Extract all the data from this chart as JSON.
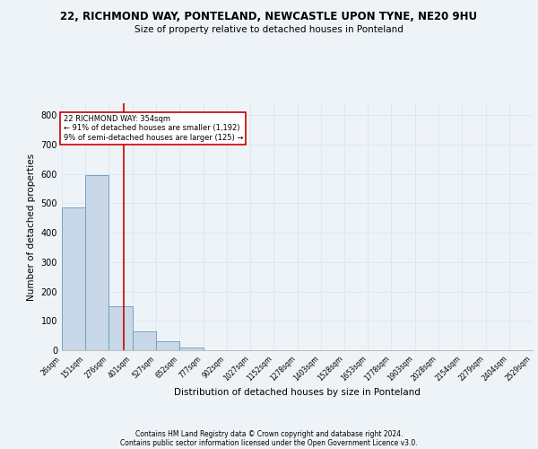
{
  "title1": "22, RICHMOND WAY, PONTELAND, NEWCASTLE UPON TYNE, NE20 9HU",
  "title2": "Size of property relative to detached houses in Ponteland",
  "xlabel": "Distribution of detached houses by size in Ponteland",
  "ylabel": "Number of detached properties",
  "footer1": "Contains HM Land Registry data © Crown copyright and database right 2024.",
  "footer2": "Contains public sector information licensed under the Open Government Licence v3.0.",
  "bin_edges": [
    26,
    151,
    276,
    401,
    527,
    652,
    777,
    902,
    1027,
    1152,
    1278,
    1403,
    1528,
    1653,
    1778,
    1903,
    2028,
    2154,
    2279,
    2404,
    2529
  ],
  "bar_heights": [
    486,
    596,
    150,
    63,
    30,
    10,
    0,
    0,
    0,
    0,
    0,
    0,
    0,
    0,
    0,
    0,
    0,
    0,
    0,
    0
  ],
  "bar_color": "#c8d8e8",
  "bar_edge_color": "#6699bb",
  "grid_color": "#dde8f0",
  "annotation_box_color": "#cc0000",
  "property_value": 354,
  "annotation_line1": "22 RICHMOND WAY: 354sqm",
  "annotation_line2": "← 91% of detached houses are smaller (1,192)",
  "annotation_line3": "9% of semi-detached houses are larger (125) →",
  "ylim": [
    0,
    840
  ],
  "yticks": [
    0,
    100,
    200,
    300,
    400,
    500,
    600,
    700,
    800
  ],
  "background_color": "#eef3f8",
  "plot_background": "#eef3f8"
}
